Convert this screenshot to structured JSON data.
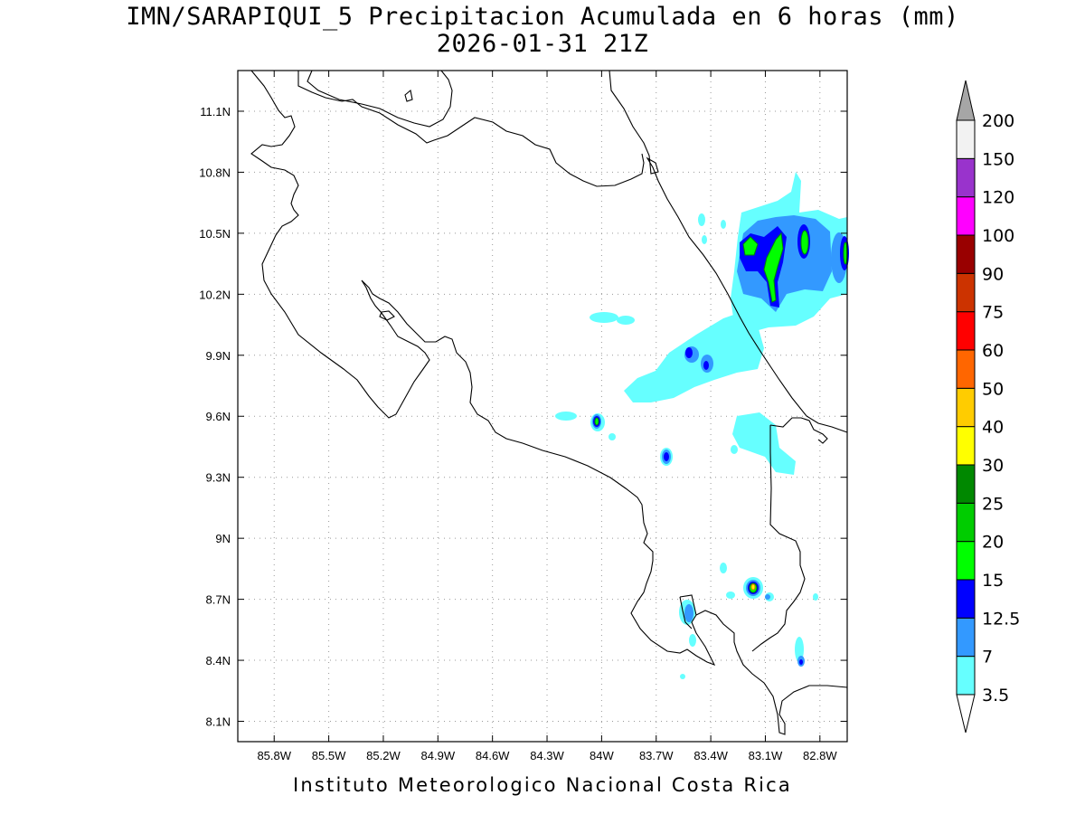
{
  "title": "IMN/SARAPIQUI_5 Precipitacion Acumulada en 6 horas (mm)",
  "subtitle": "2026-01-31 21Z",
  "footer": "Instituto Meteorologico Nacional Costa Rica",
  "map": {
    "lon_range": [
      -86.0,
      -82.65
    ],
    "lat_range": [
      8.0,
      11.3
    ],
    "lon_ticks": [
      {
        "value": -85.8,
        "label": "85.8W"
      },
      {
        "value": -85.5,
        "label": "85.5W"
      },
      {
        "value": -85.2,
        "label": "85.2W"
      },
      {
        "value": -84.9,
        "label": "84.9W"
      },
      {
        "value": -84.6,
        "label": "84.6W"
      },
      {
        "value": -84.3,
        "label": "84.3W"
      },
      {
        "value": -84.0,
        "label": "84W"
      },
      {
        "value": -83.7,
        "label": "83.7W"
      },
      {
        "value": -83.4,
        "label": "83.4W"
      },
      {
        "value": -83.1,
        "label": "83.1W"
      },
      {
        "value": -82.8,
        "label": "82.8W"
      }
    ],
    "lat_ticks": [
      {
        "value": 11.1,
        "label": "11.1N"
      },
      {
        "value": 10.8,
        "label": "10.8N"
      },
      {
        "value": 10.5,
        "label": "10.5N"
      },
      {
        "value": 10.2,
        "label": "10.2N"
      },
      {
        "value": 9.9,
        "label": "9.9N"
      },
      {
        "value": 9.6,
        "label": "9.6N"
      },
      {
        "value": 9.3,
        "label": "9.3N"
      },
      {
        "value": 9.0,
        "label": "9N"
      },
      {
        "value": 8.7,
        "label": "8.7N"
      },
      {
        "value": 8.4,
        "label": "8.4N"
      },
      {
        "value": 8.1,
        "label": "8.1N"
      }
    ],
    "grid": true
  },
  "colorbar": {
    "levels": [
      {
        "label": "3.5",
        "color": "#ffffff"
      },
      {
        "label": "7",
        "color": "#66ffff"
      },
      {
        "label": "12.5",
        "color": "#3399ff"
      },
      {
        "label": "15",
        "color": "#0000ff"
      },
      {
        "label": "20",
        "color": "#00ff00"
      },
      {
        "label": "25",
        "color": "#00cc00"
      },
      {
        "label": "30",
        "color": "#008800"
      },
      {
        "label": "40",
        "color": "#ffff00"
      },
      {
        "label": "50",
        "color": "#ffcc00"
      },
      {
        "label": "60",
        "color": "#ff6600"
      },
      {
        "label": "75",
        "color": "#ff0000"
      },
      {
        "label": "90",
        "color": "#cc3300"
      },
      {
        "label": "100",
        "color": "#990000"
      },
      {
        "label": "120",
        "color": "#ff00ff"
      },
      {
        "label": "150",
        "color": "#9933cc"
      },
      {
        "label": "200",
        "color": "#f2f2f2"
      }
    ],
    "over_color": "#a6a6a6",
    "under_color": "#ffffff"
  }
}
